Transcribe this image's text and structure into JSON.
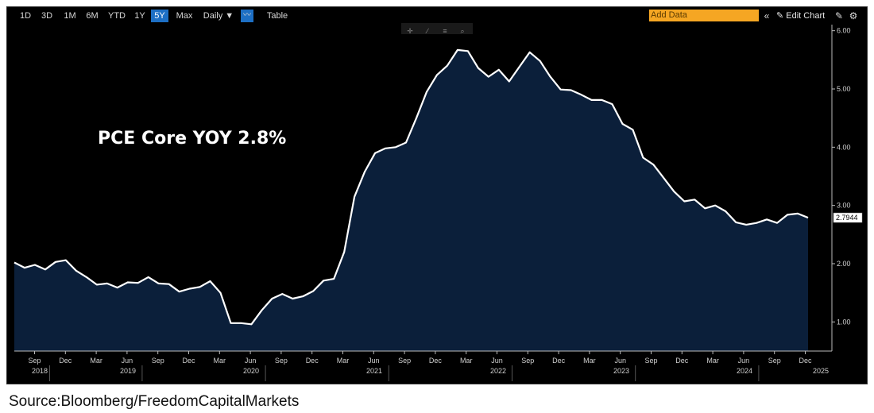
{
  "toolbar": {
    "ranges": [
      "1D",
      "3D",
      "1M",
      "6M",
      "YTD",
      "1Y",
      "5Y",
      "Max"
    ],
    "active_range": "5Y",
    "frequency": "Daily ▼",
    "table_label": "Table",
    "add_data_placeholder": "Add Data",
    "edit_chart_label": "Edit Chart"
  },
  "source": "Source:Bloomberg/FreedomCapitalMarkets",
  "colors": {
    "background": "#000000",
    "area_fill": "#0b1f3a",
    "line": "#ffffff",
    "accent": "#f5a623",
    "active_button": "#1d6fc4"
  },
  "chart_data": {
    "type": "area",
    "annotation": "PCE Core YOY 2.8%",
    "last_value_label": "2.7944",
    "ylim": [
      0.5,
      6.05
    ],
    "y_ticks": [
      "1.00",
      "2.00",
      "3.00",
      "4.00",
      "5.00",
      "6.00"
    ],
    "x_month_ticks": [
      "Sep",
      "Dec",
      "Mar",
      "Jun",
      "Sep",
      "Dec",
      "Mar",
      "Jun",
      "Sep",
      "Dec",
      "Mar",
      "Jun",
      "Sep",
      "Dec",
      "Mar",
      "Jun",
      "Sep",
      "Dec",
      "Mar",
      "Jun",
      "Sep",
      "Dec",
      "Mar",
      "Jun",
      "Sep",
      "Dec"
    ],
    "x_year_labels": [
      "2018",
      "2019",
      "2020",
      "2021",
      "2022",
      "2023",
      "2024",
      "2025"
    ],
    "x_start": "2018-07",
    "series": [
      {
        "values": [
          2.02,
          1.93,
          1.98,
          1.9,
          2.03,
          2.06,
          1.88,
          1.77,
          1.64,
          1.66,
          1.59,
          1.68,
          1.67,
          1.77,
          1.66,
          1.65,
          1.52,
          1.57,
          1.6,
          1.7,
          1.5,
          0.98,
          0.98,
          0.96,
          1.2,
          1.4,
          1.48,
          1.4,
          1.44,
          1.53,
          1.71,
          1.74,
          2.2,
          3.15,
          3.58,
          3.9,
          3.98,
          4.0,
          4.08,
          4.5,
          4.95,
          5.24,
          5.4,
          5.67,
          5.65,
          5.36,
          5.21,
          5.33,
          5.13,
          5.38,
          5.63,
          5.48,
          5.21,
          4.99,
          4.98,
          4.9,
          4.81,
          4.81,
          4.74,
          4.4,
          4.3,
          3.82,
          3.7,
          3.47,
          3.24,
          3.07,
          3.1,
          2.95,
          3.0,
          2.9,
          2.71,
          2.67,
          2.7,
          2.76,
          2.7,
          2.84,
          2.86,
          2.79
        ]
      }
    ]
  }
}
